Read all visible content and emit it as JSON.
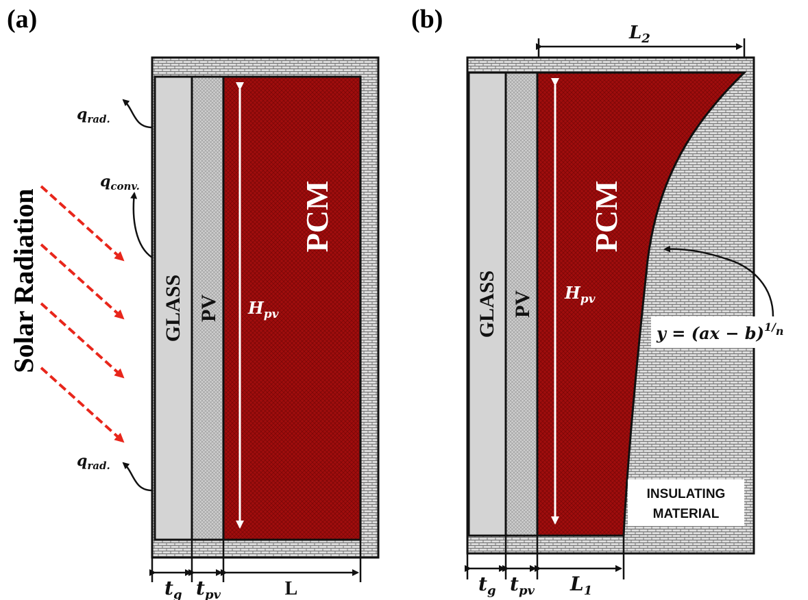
{
  "panels": {
    "a": {
      "label": "(a)",
      "solar_label": "Solar Radiation",
      "glass_label": "GLASS",
      "pv_label": "PV",
      "pcm_label": "PCM",
      "height_label": "H_pv",
      "flux_rad_top": "q_rad.",
      "flux_conv": "q_conv.",
      "flux_rad_bottom": "q_rad.",
      "dim_glass": "t_g",
      "dim_pv": "t_pv",
      "dim_pcm": "L"
    },
    "b": {
      "label": "(b)",
      "glass_label": "GLASS",
      "pv_label": "PV",
      "pcm_label": "PCM",
      "height_label": "H_pv",
      "top_width_label": "L_2",
      "equation": "y = (ax − b)^1/n",
      "insulation_line1": "INSULATING",
      "insulation_line2": "MATERIAL",
      "dim_glass": "t_g",
      "dim_pv": "t_pv",
      "dim_pcm": "L_1"
    }
  },
  "colors": {
    "pcm": "#a00d0d",
    "glass": "#d4d4d4",
    "pv": "#c9c9c9",
    "insulation": "#d9d9d9",
    "solar_arrows": "#e8261b"
  }
}
